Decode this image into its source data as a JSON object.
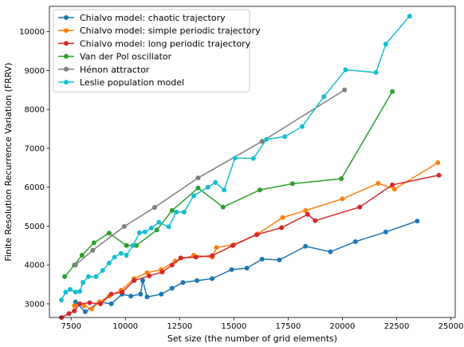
{
  "chart_data": {
    "type": "line",
    "xlabel": "Set size (the number of grid elements)",
    "ylabel": "Finite Resolution Recurrence Variation (FRRV)",
    "xlim": [
      6500,
      25200
    ],
    "ylim": [
      2650,
      10650
    ],
    "xticks": [
      7500,
      10000,
      12500,
      15000,
      17500,
      20000,
      22500,
      25000
    ],
    "yticks": [
      3000,
      4000,
      5000,
      6000,
      7000,
      8000,
      9000,
      10000
    ],
    "grid": false,
    "legend": "top-left",
    "series": [
      {
        "name": "Chialvo model: chaotic trajectory",
        "color": "#1f77b4",
        "points": [
          [
            7700,
            3050
          ],
          [
            8150,
            2800
          ],
          [
            8800,
            3050
          ],
          [
            9350,
            3000
          ],
          [
            9850,
            3250
          ],
          [
            10250,
            3200
          ],
          [
            10700,
            3250
          ],
          [
            10800,
            3600
          ],
          [
            11000,
            3180
          ],
          [
            11650,
            3250
          ],
          [
            12150,
            3400
          ],
          [
            12650,
            3550
          ],
          [
            13300,
            3600
          ],
          [
            14000,
            3650
          ],
          [
            14900,
            3880
          ],
          [
            15600,
            3920
          ],
          [
            16300,
            4150
          ],
          [
            17100,
            4130
          ],
          [
            18300,
            4480
          ],
          [
            19450,
            4340
          ],
          [
            20600,
            4600
          ],
          [
            22000,
            4850
          ],
          [
            23450,
            5130
          ]
        ]
      },
      {
        "name": "Chialvo model: simple periodic trajectory",
        "color": "#ff7f0e",
        "points": [
          [
            7650,
            2950
          ],
          [
            7900,
            3000
          ],
          [
            8100,
            2950
          ],
          [
            8450,
            2870
          ],
          [
            8800,
            3050
          ],
          [
            9250,
            3200
          ],
          [
            9800,
            3350
          ],
          [
            10400,
            3650
          ],
          [
            11000,
            3800
          ],
          [
            11650,
            3880
          ],
          [
            12300,
            4100
          ],
          [
            13150,
            4250
          ],
          [
            14000,
            4200
          ],
          [
            14200,
            4450
          ],
          [
            15000,
            4520
          ],
          [
            16100,
            4800
          ],
          [
            17250,
            5220
          ],
          [
            18300,
            5400
          ],
          [
            20000,
            5700
          ],
          [
            21650,
            6100
          ],
          [
            22400,
            5950
          ],
          [
            24400,
            6630
          ]
        ]
      },
      {
        "name": "Chialvo model: long periodic trajectory",
        "color": "#d62728",
        "points": [
          [
            7050,
            2650
          ],
          [
            7400,
            2750
          ],
          [
            7650,
            2820
          ],
          [
            7900,
            3000
          ],
          [
            8350,
            3030
          ],
          [
            8850,
            3000
          ],
          [
            9350,
            3250
          ],
          [
            9850,
            3300
          ],
          [
            10400,
            3600
          ],
          [
            11100,
            3720
          ],
          [
            11700,
            3820
          ],
          [
            12150,
            4000
          ],
          [
            12550,
            4180
          ],
          [
            13250,
            4200
          ],
          [
            14000,
            4240
          ],
          [
            14950,
            4500
          ],
          [
            16050,
            4780
          ],
          [
            17200,
            4960
          ],
          [
            18400,
            5300
          ],
          [
            18750,
            5140
          ],
          [
            20800,
            5490
          ],
          [
            22300,
            6060
          ],
          [
            24450,
            6310
          ]
        ]
      },
      {
        "name": "Van der Pol oscillator",
        "color": "#2ca02c",
        "points": [
          [
            7200,
            3700
          ],
          [
            7650,
            4000
          ],
          [
            8000,
            4250
          ],
          [
            8550,
            4570
          ],
          [
            9250,
            4820
          ],
          [
            10050,
            4500
          ],
          [
            10500,
            4500
          ],
          [
            11450,
            4900
          ],
          [
            12150,
            5400
          ],
          [
            13350,
            5980
          ],
          [
            14500,
            5490
          ],
          [
            16200,
            5930
          ],
          [
            17700,
            6090
          ],
          [
            19950,
            6220
          ],
          [
            22300,
            8460
          ]
        ]
      },
      {
        "name": "Hénon attractor",
        "color": "#7f7f7f",
        "points": [
          [
            7700,
            4000
          ],
          [
            8500,
            4380
          ],
          [
            9950,
            4990
          ],
          [
            11350,
            5480
          ],
          [
            13350,
            6240
          ],
          [
            16300,
            7180
          ],
          [
            20100,
            8500
          ]
        ]
      },
      {
        "name": "Leslie population model",
        "color": "#17becf",
        "points": [
          [
            7050,
            3100
          ],
          [
            7250,
            3300
          ],
          [
            7450,
            3370
          ],
          [
            7700,
            3300
          ],
          [
            7900,
            3320
          ],
          [
            8050,
            3550
          ],
          [
            8300,
            3700
          ],
          [
            8650,
            3700
          ],
          [
            8950,
            3860
          ],
          [
            9250,
            4050
          ],
          [
            9500,
            4200
          ],
          [
            9800,
            4300
          ],
          [
            10050,
            4250
          ],
          [
            10350,
            4500
          ],
          [
            10650,
            4830
          ],
          [
            10900,
            4850
          ],
          [
            11200,
            4950
          ],
          [
            11550,
            5100
          ],
          [
            12000,
            4980
          ],
          [
            12350,
            5360
          ],
          [
            12700,
            5360
          ],
          [
            13150,
            5780
          ],
          [
            13800,
            6000
          ],
          [
            14150,
            6120
          ],
          [
            14550,
            5930
          ],
          [
            15050,
            6750
          ],
          [
            15900,
            6740
          ],
          [
            16500,
            7230
          ],
          [
            17350,
            7300
          ],
          [
            18150,
            7560
          ],
          [
            19150,
            8330
          ],
          [
            20150,
            9020
          ],
          [
            21550,
            8950
          ],
          [
            22000,
            9680
          ],
          [
            23100,
            10400
          ]
        ]
      }
    ]
  }
}
